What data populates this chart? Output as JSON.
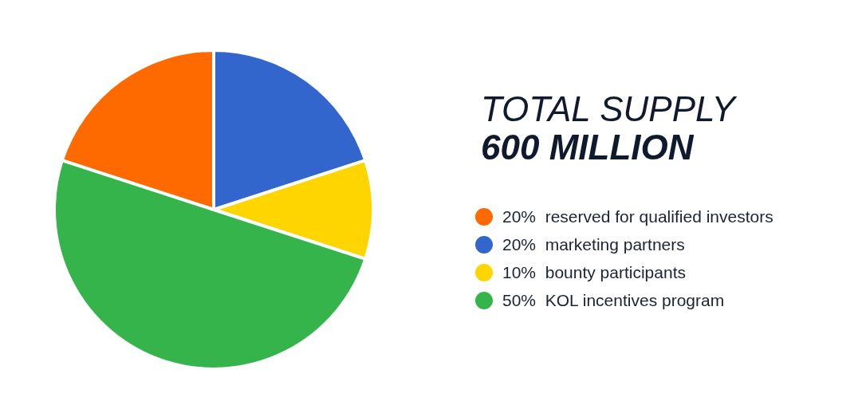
{
  "chart_data": {
    "type": "pie",
    "title": "TOTAL SUPPLY",
    "subtitle": "600 MILLION",
    "categories": [
      "reserved for qualified investors",
      "marketing partners",
      "bounty participants",
      "KOL incentives program"
    ],
    "values": [
      20,
      20,
      10,
      50
    ],
    "value_labels": [
      "20%",
      "20%",
      "10%",
      "50%"
    ],
    "colors": [
      "#ff6a00",
      "#3366cc",
      "#ffd500",
      "#34b44a"
    ],
    "legend": "right"
  }
}
